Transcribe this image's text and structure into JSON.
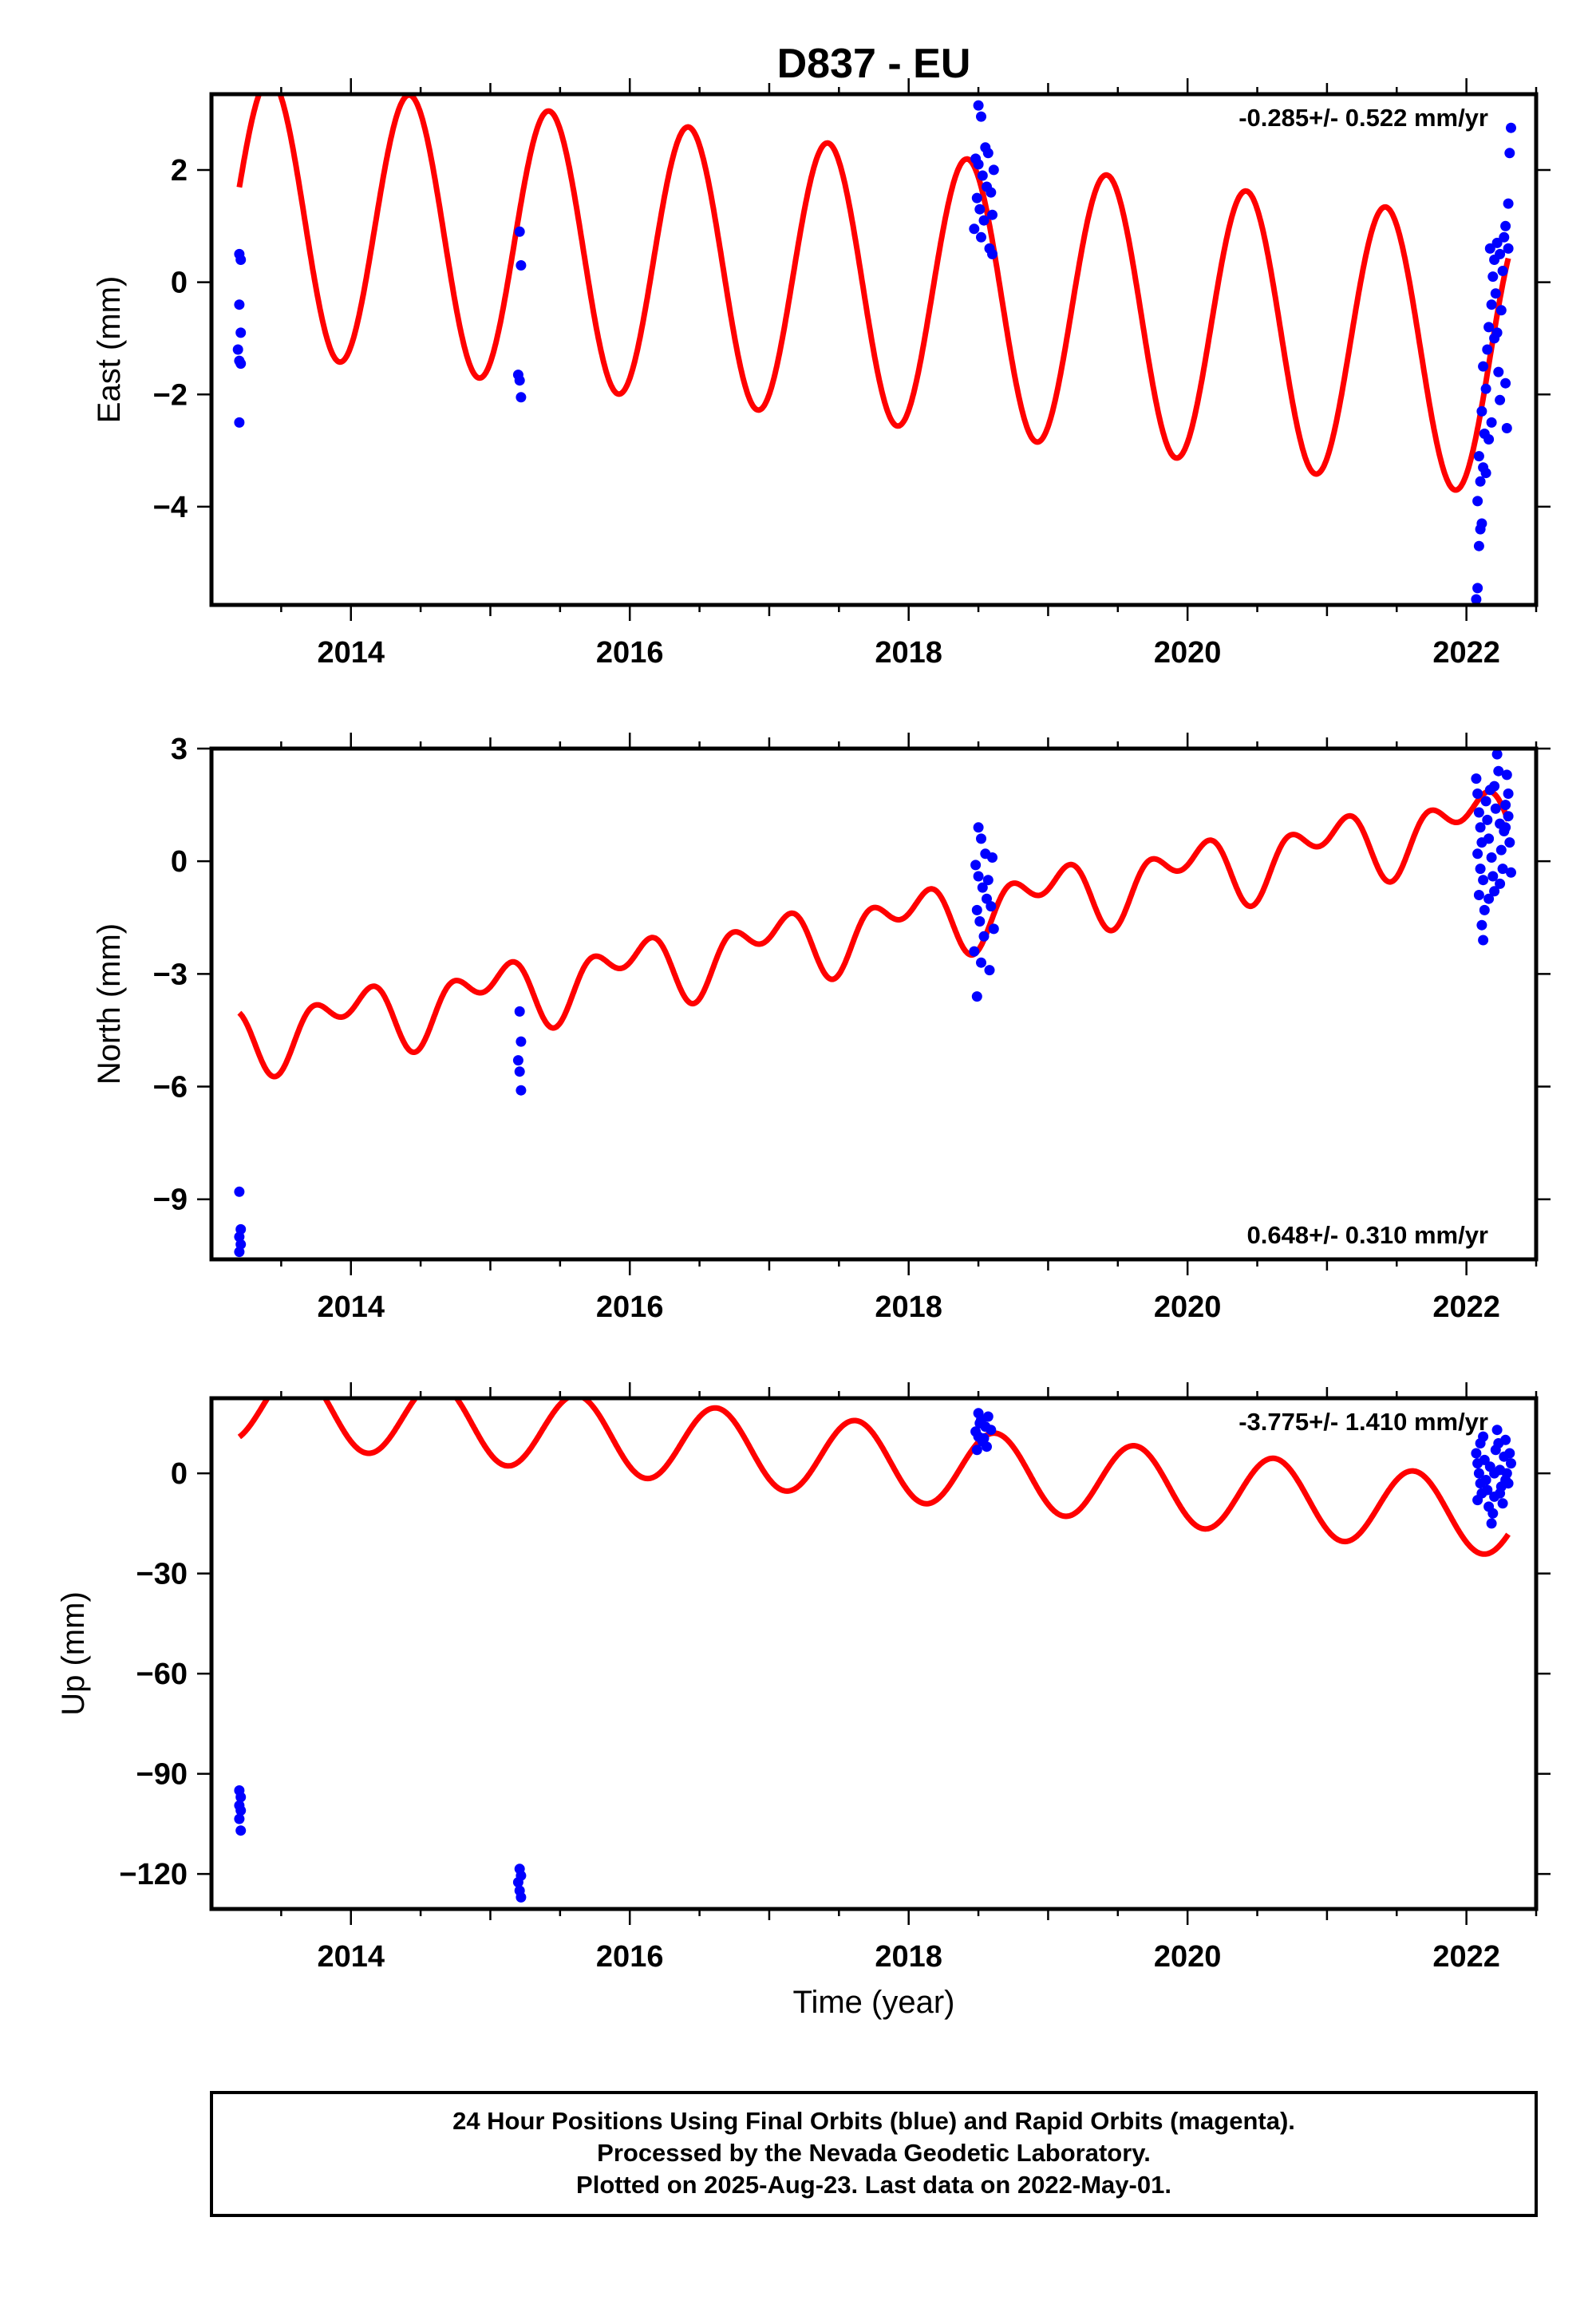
{
  "title": "D837 - EU",
  "colors": {
    "data": "#0000ff",
    "model": "#ff0000",
    "frame": "#000000"
  },
  "footer": {
    "line1": "24 Hour Positions Using Final Orbits (blue) and Rapid Orbits (magenta).",
    "line2": "Processed by the Nevada Geodetic Laboratory.",
    "line3": "Plotted on 2025-Aug-23. Last data on 2022-May-01."
  },
  "chart_data": [
    {
      "type": "scatter",
      "panel": "east",
      "ylabel": "East (mm)",
      "xlabel": "",
      "rate_label": "-0.285+/- 0.522 mm/yr",
      "rate_position": "top-right",
      "xlim": [
        2013.0,
        2022.5
      ],
      "ylim": [
        -5.75,
        3.35
      ],
      "xticks": [
        2014,
        2016,
        2018,
        2020,
        2022
      ],
      "yticks": [
        2,
        0,
        -2,
        -4
      ],
      "ytick_labels": [
        "2",
        "0",
        "−2",
        "−4"
      ],
      "model": {
        "name": "",
        "offset": -0.05,
        "trend": -0.285,
        "amplitude": 2.45,
        "phase_peak": 0.42,
        "t0": 2017.7
      },
      "points": [
        [
          2013.2,
          0.5
        ],
        [
          2013.21,
          0.4
        ],
        [
          2013.2,
          -0.4
        ],
        [
          2013.21,
          -0.9
        ],
        [
          2013.19,
          -1.2
        ],
        [
          2013.2,
          -1.4
        ],
        [
          2013.21,
          -1.45
        ],
        [
          2013.2,
          -2.5
        ],
        [
          2015.21,
          0.9
        ],
        [
          2015.22,
          0.3
        ],
        [
          2015.2,
          -1.65
        ],
        [
          2015.21,
          -1.75
        ],
        [
          2015.22,
          -2.05
        ],
        [
          2018.5,
          3.15
        ],
        [
          2018.52,
          2.95
        ],
        [
          2018.55,
          2.4
        ],
        [
          2018.48,
          2.2
        ],
        [
          2018.5,
          2.1
        ],
        [
          2018.53,
          1.9
        ],
        [
          2018.56,
          1.7
        ],
        [
          2018.49,
          1.5
        ],
        [
          2018.51,
          1.3
        ],
        [
          2018.54,
          1.1
        ],
        [
          2018.47,
          0.95
        ],
        [
          2018.52,
          0.8
        ],
        [
          2018.58,
          0.6
        ],
        [
          2018.6,
          0.5
        ],
        [
          2018.57,
          2.3
        ],
        [
          2018.59,
          1.6
        ],
        [
          2018.6,
          1.2
        ],
        [
          2018.61,
          2.0
        ],
        [
          2022.07,
          -5.65
        ],
        [
          2022.08,
          -5.45
        ],
        [
          2022.09,
          -4.7
        ],
        [
          2022.1,
          -4.4
        ],
        [
          2022.11,
          -4.3
        ],
        [
          2022.08,
          -3.9
        ],
        [
          2022.1,
          -3.55
        ],
        [
          2022.12,
          -3.3
        ],
        [
          2022.09,
          -3.1
        ],
        [
          2022.13,
          -2.7
        ],
        [
          2022.11,
          -2.3
        ],
        [
          2022.14,
          -1.9
        ],
        [
          2022.12,
          -1.5
        ],
        [
          2022.15,
          -1.2
        ],
        [
          2022.16,
          -0.8
        ],
        [
          2022.18,
          -0.4
        ],
        [
          2022.19,
          0.1
        ],
        [
          2022.2,
          0.4
        ],
        [
          2022.17,
          0.6
        ],
        [
          2022.21,
          -0.2
        ],
        [
          2022.22,
          -0.9
        ],
        [
          2022.23,
          -1.6
        ],
        [
          2022.24,
          -2.1
        ],
        [
          2022.25,
          -0.5
        ],
        [
          2022.26,
          0.2
        ],
        [
          2022.27,
          0.8
        ],
        [
          2022.28,
          1.0
        ],
        [
          2022.29,
          -2.6
        ],
        [
          2022.3,
          1.4
        ],
        [
          2022.31,
          2.3
        ],
        [
          2022.32,
          2.75
        ],
        [
          2022.18,
          -2.5
        ],
        [
          2022.2,
          -1.0
        ],
        [
          2022.22,
          0.7
        ],
        [
          2022.14,
          -3.4
        ],
        [
          2022.16,
          -2.8
        ],
        [
          2022.24,
          0.5
        ],
        [
          2022.28,
          -1.8
        ],
        [
          2022.3,
          0.6
        ]
      ]
    },
    {
      "type": "scatter",
      "panel": "north",
      "ylabel": "North (mm)",
      "xlabel": "",
      "rate_label": "0.648+/- 0.310 mm/yr",
      "rate_position": "bottom-right",
      "xlim": [
        2013.0,
        2022.5
      ],
      "ylim": [
        -10.6,
        3.0
      ],
      "xticks": [
        2014,
        2016,
        2018,
        2020,
        2022
      ],
      "yticks": [
        3,
        0,
        -3,
        -6,
        -9
      ],
      "ytick_labels": [
        "3",
        "0",
        "−3",
        "−6",
        "−9"
      ],
      "model": {
        "name": "",
        "offset": -0.95,
        "trend": 0.648,
        "amplitude": 0.65,
        "phase_peak": 0.98,
        "t0": 2019.0,
        "semiannual": 0.55
      },
      "points": [
        [
          2013.2,
          -8.8
        ],
        [
          2013.21,
          -9.8
        ],
        [
          2013.2,
          -10.0
        ],
        [
          2013.21,
          -10.2
        ],
        [
          2013.2,
          -10.4
        ],
        [
          2015.21,
          -4.0
        ],
        [
          2015.22,
          -4.8
        ],
        [
          2015.2,
          -5.3
        ],
        [
          2015.21,
          -5.6
        ],
        [
          2015.22,
          -6.1
        ],
        [
          2018.5,
          0.9
        ],
        [
          2018.52,
          0.6
        ],
        [
          2018.55,
          0.2
        ],
        [
          2018.48,
          -0.1
        ],
        [
          2018.5,
          -0.4
        ],
        [
          2018.53,
          -0.7
        ],
        [
          2018.56,
          -1.0
        ],
        [
          2018.49,
          -1.3
        ],
        [
          2018.51,
          -1.6
        ],
        [
          2018.54,
          -2.0
        ],
        [
          2018.47,
          -2.4
        ],
        [
          2018.52,
          -2.7
        ],
        [
          2018.58,
          -2.9
        ],
        [
          2018.49,
          -3.6
        ],
        [
          2018.6,
          0.1
        ],
        [
          2018.57,
          -0.5
        ],
        [
          2018.59,
          -1.2
        ],
        [
          2018.61,
          -1.8
        ],
        [
          2022.07,
          2.2
        ],
        [
          2022.08,
          1.8
        ],
        [
          2022.09,
          1.3
        ],
        [
          2022.1,
          0.9
        ],
        [
          2022.11,
          0.5
        ],
        [
          2022.08,
          0.2
        ],
        [
          2022.1,
          -0.2
        ],
        [
          2022.12,
          -0.5
        ],
        [
          2022.09,
          -0.9
        ],
        [
          2022.13,
          -1.3
        ],
        [
          2022.11,
          -1.7
        ],
        [
          2022.12,
          -2.1
        ],
        [
          2022.14,
          1.6
        ],
        [
          2022.15,
          1.1
        ],
        [
          2022.16,
          0.6
        ],
        [
          2022.18,
          0.1
        ],
        [
          2022.19,
          -0.4
        ],
        [
          2022.2,
          -0.8
        ],
        [
          2022.17,
          1.9
        ],
        [
          2022.21,
          1.4
        ],
        [
          2022.22,
          2.85
        ],
        [
          2022.23,
          2.4
        ],
        [
          2022.24,
          1.0
        ],
        [
          2022.25,
          0.3
        ],
        [
          2022.26,
          -0.2
        ],
        [
          2022.27,
          0.8
        ],
        [
          2022.28,
          1.5
        ],
        [
          2022.29,
          2.3
        ],
        [
          2022.3,
          1.8
        ],
        [
          2022.31,
          0.5
        ],
        [
          2022.32,
          -0.3
        ],
        [
          2022.16,
          -1.0
        ],
        [
          2022.2,
          2.0
        ],
        [
          2022.24,
          -0.6
        ],
        [
          2022.28,
          0.9
        ],
        [
          2022.3,
          1.2
        ]
      ]
    },
    {
      "type": "scatter",
      "panel": "up",
      "ylabel": "Up (mm)",
      "xlabel": "Time (year)",
      "rate_label": "-3.775+/- 1.410 mm/yr",
      "rate_position": "top-right",
      "xlim": [
        2013.0,
        2022.5
      ],
      "ylim": [
        -130.5,
        22.5
      ],
      "xticks": [
        2014,
        2016,
        2018,
        2020,
        2022
      ],
      "yticks": [
        0,
        -30,
        -60,
        -90,
        -120
      ],
      "ytick_labels": [
        "0",
        "−30",
        "−60",
        "−90",
        "−120"
      ],
      "model": {
        "name": "",
        "offset": 4.0,
        "trend": -3.775,
        "amplitude": 11.5,
        "phase_peak": 0.62,
        "t0": 2017.7
      },
      "points": [
        [
          2013.2,
          -95.0
        ],
        [
          2013.21,
          -97.0
        ],
        [
          2013.2,
          -99.5
        ],
        [
          2013.21,
          -101.0
        ],
        [
          2013.2,
          -103.5
        ],
        [
          2013.21,
          -107.0
        ],
        [
          2015.21,
          -118.5
        ],
        [
          2015.22,
          -120.5
        ],
        [
          2015.2,
          -122.5
        ],
        [
          2015.21,
          -125.0
        ],
        [
          2015.22,
          -127.0
        ],
        [
          2018.5,
          18.0
        ],
        [
          2018.52,
          16.0
        ],
        [
          2018.55,
          14.0
        ],
        [
          2018.48,
          12.5
        ],
        [
          2018.5,
          11.0
        ],
        [
          2018.53,
          9.5
        ],
        [
          2018.56,
          8.0
        ],
        [
          2018.49,
          7.0
        ],
        [
          2018.51,
          15.0
        ],
        [
          2018.54,
          10.5
        ],
        [
          2018.57,
          17.0
        ],
        [
          2018.59,
          13.0
        ],
        [
          2022.07,
          6.0
        ],
        [
          2022.08,
          3.0
        ],
        [
          2022.09,
          0.0
        ],
        [
          2022.1,
          -3.0
        ],
        [
          2022.11,
          -6.0
        ],
        [
          2022.08,
          -8.0
        ],
        [
          2022.1,
          9.0
        ],
        [
          2022.12,
          11.0
        ],
        [
          2022.13,
          4.0
        ],
        [
          2022.14,
          -2.0
        ],
        [
          2022.15,
          -5.0
        ],
        [
          2022.16,
          -10.0
        ],
        [
          2022.18,
          -15.0
        ],
        [
          2022.19,
          -12.0
        ],
        [
          2022.2,
          -7.0
        ],
        [
          2022.17,
          2.0
        ],
        [
          2022.21,
          7.0
        ],
        [
          2022.22,
          13.0
        ],
        [
          2022.23,
          9.0
        ],
        [
          2022.24,
          1.0
        ],
        [
          2022.25,
          -4.0
        ],
        [
          2022.26,
          -9.0
        ],
        [
          2022.27,
          5.0
        ],
        [
          2022.28,
          10.0
        ],
        [
          2022.29,
          0.0
        ],
        [
          2022.3,
          -3.0
        ],
        [
          2022.31,
          6.0
        ],
        [
          2022.32,
          3.0
        ],
        [
          2022.2,
          0.0
        ],
        [
          2022.24,
          -6.0
        ],
        [
          2022.28,
          -2.0
        ]
      ]
    }
  ]
}
